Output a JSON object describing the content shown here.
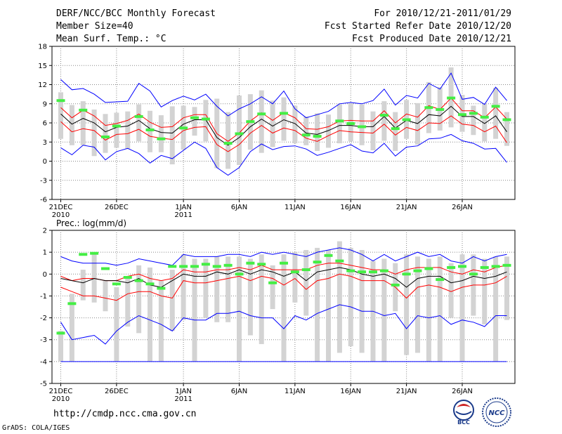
{
  "header": {
    "title": "DERF/NCC/BCC Monthly Forecast",
    "member_size": "Member Size=40",
    "variable": "Mean Surf. Temp.: °C",
    "period": "For 2010/12/21-2011/01/29",
    "started": "Fcst Started Refer Date 2010/12/20",
    "produced": "Fcst Produced Date 2010/12/21"
  },
  "footer": {
    "url": "http://cmdp.ncc.cma.gov.cn",
    "credit": "GrADS: COLA/IGES"
  },
  "logos": {
    "bcc": "BCC",
    "ncc": "NCC"
  },
  "colors": {
    "mean": "#000000",
    "spread": "#ff0000",
    "envelope": "#0000ff",
    "box": "#d3d3d3",
    "obs": "#44ee44"
  },
  "chart_data": [
    {
      "type": "box-line",
      "title": "",
      "ylabel": "Mean Surf. Temp.: °C",
      "ylim": [
        -6,
        18
      ],
      "yticks": [
        -6,
        -3,
        0,
        3,
        6,
        9,
        12,
        15,
        18
      ],
      "xticks": [
        {
          "day": 0,
          "label": "21DEC",
          "sub": "2010"
        },
        {
          "day": 5,
          "label": "26DEC",
          "sub": ""
        },
        {
          "day": 11,
          "label": "1JAN",
          "sub": "2011"
        },
        {
          "day": 16,
          "label": "6JAN",
          "sub": ""
        },
        {
          "day": 21,
          "label": "11JAN",
          "sub": ""
        },
        {
          "day": 26,
          "label": "16JAN",
          "sub": ""
        },
        {
          "day": 31,
          "label": "21JAN",
          "sub": ""
        },
        {
          "day": 36,
          "label": "26JAN",
          "sub": ""
        }
      ],
      "series": [
        {
          "name": "max",
          "values": [
            12.8,
            11.2,
            11.4,
            10.5,
            9.2,
            9.3,
            9.4,
            12.2,
            11.0,
            8.5,
            9.5,
            10.2,
            9.6,
            10.5,
            8.6,
            7.1,
            8.2,
            9.0,
            10.1,
            9.0,
            11.0,
            8.2,
            6.8,
            7.3,
            7.8,
            9.0,
            9.2,
            9.0,
            9.5,
            11.3,
            8.8,
            10.3,
            9.9,
            12.2,
            11.3,
            13.8,
            9.7,
            10.0,
            8.9,
            11.6,
            9.5
          ]
        },
        {
          "name": "upper",
          "values": [
            8.4,
            6.8,
            8.0,
            7.1,
            5.6,
            5.9,
            6.4,
            7.4,
            6.1,
            5.3,
            5.4,
            6.8,
            7.3,
            7.3,
            4.3,
            3.1,
            4.4,
            6.3,
            7.6,
            6.4,
            7.6,
            6.8,
            5.1,
            5.0,
            5.4,
            6.3,
            6.4,
            6.3,
            6.3,
            7.9,
            6.0,
            7.4,
            6.9,
            8.7,
            8.1,
            9.9,
            7.9,
            7.9,
            6.8,
            8.5,
            6.6
          ]
        },
        {
          "name": "mean",
          "values": [
            7.4,
            5.8,
            6.7,
            6.0,
            4.6,
            5.3,
            5.5,
            6.4,
            5.1,
            4.5,
            4.4,
            5.8,
            6.5,
            6.5,
            3.7,
            2.5,
            3.7,
            5.4,
            6.6,
            5.5,
            6.5,
            5.9,
            4.4,
            4.2,
            4.8,
            5.6,
            5.6,
            5.4,
            5.4,
            7.0,
            5.2,
            6.4,
            5.9,
            7.3,
            7.1,
            8.6,
            7.0,
            7.0,
            5.9,
            7.1,
            4.6
          ]
        },
        {
          "name": "lower",
          "values": [
            6.2,
            4.6,
            5.1,
            4.8,
            3.3,
            4.2,
            4.3,
            5.0,
            3.9,
            3.6,
            3.4,
            4.8,
            5.3,
            5.4,
            2.6,
            1.5,
            2.6,
            4.4,
            5.6,
            4.4,
            5.2,
            4.8,
            3.6,
            3.1,
            4.0,
            4.8,
            4.6,
            4.5,
            4.4,
            5.8,
            4.1,
            5.3,
            4.8,
            6.0,
            5.9,
            7.1,
            5.8,
            5.6,
            4.6,
            5.5,
            2.9
          ]
        },
        {
          "name": "min",
          "values": [
            2.1,
            1.0,
            2.5,
            2.2,
            0.2,
            1.5,
            2.0,
            1.2,
            -0.3,
            0.9,
            0.4,
            1.7,
            3.0,
            2.0,
            -1.0,
            -2.2,
            -1.0,
            1.5,
            2.7,
            1.8,
            2.3,
            2.4,
            1.9,
            0.9,
            1.4,
            2.0,
            2.6,
            1.6,
            1.3,
            2.8,
            0.8,
            2.2,
            2.4,
            3.5,
            3.6,
            4.2,
            3.2,
            2.8,
            1.9,
            2.0,
            -0.2
          ]
        },
        {
          "name": "observed",
          "values": [
            9.5,
            null,
            8.0,
            null,
            3.8,
            5.5,
            null,
            7.0,
            4.9,
            3.5,
            null,
            5.2,
            6.8,
            6.6,
            null,
            2.8,
            4.3,
            6.2,
            7.4,
            null,
            7.5,
            null,
            4.1,
            3.9,
            null,
            6.3,
            5.9,
            5.4,
            null,
            7.2,
            5.1,
            6.5,
            null,
            8.4,
            8.1,
            9.9,
            7.3,
            7.5,
            6.9,
            8.6,
            6.5
          ]
        },
        {
          "name": "box_top",
          "values": [
            10.8,
            8.8,
            9.4,
            8.1,
            7.4,
            7.6,
            7.8,
            8.9,
            7.9,
            7.2,
            8.6,
            8.7,
            8.5,
            9.6,
            9.8,
            7.7,
            10.3,
            10.5,
            11.1,
            9.5,
            10.0,
            8.7,
            7.0,
            7.5,
            7.3,
            8.9,
            9.1,
            8.9,
            7.8,
            9.4,
            7.7,
            9.6,
            9.1,
            12.4,
            11.6,
            14.7,
            10.4,
            8.7,
            9.0,
            11.5,
            7.7
          ]
        },
        {
          "name": "box_bottom",
          "values": [
            3.5,
            2.5,
            2.5,
            0.8,
            1.3,
            2.1,
            1.9,
            3.1,
            1.4,
            1.4,
            -0.5,
            1.8,
            4.0,
            3.1,
            -1.1,
            -1.2,
            -0.6,
            1.8,
            1.3,
            2.2,
            3.2,
            2.8,
            2.5,
            1.6,
            2.1,
            2.8,
            3.1,
            2.5,
            1.7,
            3.2,
            1.6,
            3.5,
            2.6,
            4.4,
            4.8,
            5.3,
            4.6,
            4.1,
            3.1,
            3.5,
            2.4
          ]
        }
      ]
    },
    {
      "type": "box-line",
      "title": "Prec.: log(mm/d)",
      "ylabel": "Prec.: log(mm/d)",
      "ylim": [
        -5,
        2
      ],
      "yticks": [
        -5,
        -4,
        -3,
        -2,
        -1,
        0,
        1,
        2
      ],
      "xticks": [
        {
          "day": 0,
          "label": "21DEC",
          "sub": "2010"
        },
        {
          "day": 5,
          "label": "26DEC",
          "sub": ""
        },
        {
          "day": 11,
          "label": "1JAN",
          "sub": "2011"
        },
        {
          "day": 16,
          "label": "6JAN",
          "sub": ""
        },
        {
          "day": 21,
          "label": "11JAN",
          "sub": ""
        },
        {
          "day": 26,
          "label": "16JAN",
          "sub": ""
        },
        {
          "day": 31,
          "label": "21JAN",
          "sub": ""
        },
        {
          "day": 36,
          "label": "26JAN",
          "sub": ""
        }
      ],
      "baseline": -4,
      "series": [
        {
          "name": "max",
          "values": [
            0.8,
            0.6,
            0.5,
            0.5,
            0.5,
            0.4,
            0.5,
            0.7,
            0.6,
            0.5,
            0.4,
            0.9,
            0.8,
            0.8,
            0.8,
            0.9,
            0.9,
            0.8,
            1.0,
            0.9,
            1.0,
            0.9,
            0.8,
            1.0,
            1.1,
            1.2,
            1.1,
            0.9,
            0.6,
            0.9,
            0.6,
            0.8,
            1.0,
            0.8,
            0.9,
            0.6,
            0.5,
            0.8,
            0.6,
            0.8,
            0.9
          ]
        },
        {
          "name": "upper",
          "values": [
            -0.1,
            -0.3,
            -0.2,
            -0.2,
            -0.3,
            -0.3,
            -0.1,
            0.0,
            -0.2,
            -0.3,
            -0.2,
            0.2,
            0.1,
            0.1,
            0.2,
            0.2,
            0.3,
            0.2,
            0.4,
            0.2,
            0.2,
            0.2,
            0.2,
            0.4,
            0.5,
            0.5,
            0.4,
            0.3,
            0.2,
            0.2,
            0.0,
            0.2,
            0.3,
            0.3,
            0.3,
            0.1,
            0.0,
            0.2,
            0.1,
            0.3,
            0.4
          ]
        },
        {
          "name": "mean",
          "values": [
            -0.2,
            -0.3,
            -0.4,
            -0.2,
            -0.3,
            -0.3,
            -0.4,
            -0.2,
            -0.5,
            -0.6,
            -0.3,
            0.0,
            -0.1,
            -0.1,
            0.1,
            0.0,
            0.2,
            0.0,
            0.2,
            0.1,
            -0.1,
            0.1,
            -0.3,
            0.1,
            0.2,
            0.3,
            0.2,
            0.0,
            -0.1,
            0.0,
            -0.2,
            -0.6,
            -0.2,
            -0.1,
            -0.1,
            -0.4,
            -0.3,
            -0.1,
            -0.2,
            -0.1,
            0.1
          ]
        },
        {
          "name": "lower",
          "values": [
            -0.6,
            -0.8,
            -1.0,
            -1.0,
            -1.1,
            -1.2,
            -0.9,
            -0.8,
            -0.8,
            -1.0,
            -1.1,
            -0.3,
            -0.4,
            -0.4,
            -0.3,
            -0.2,
            -0.1,
            -0.3,
            -0.1,
            -0.2,
            -0.5,
            -0.2,
            -0.7,
            -0.3,
            -0.2,
            0.0,
            -0.1,
            -0.3,
            -0.3,
            -0.3,
            -0.6,
            -1.1,
            -0.6,
            -0.5,
            -0.6,
            -0.8,
            -0.6,
            -0.5,
            -0.5,
            -0.4,
            -0.1
          ]
        },
        {
          "name": "min",
          "values": [
            -2.2,
            -3.0,
            -2.9,
            -2.8,
            -3.2,
            -2.6,
            -2.2,
            -1.9,
            -2.1,
            -2.3,
            -2.6,
            -2.0,
            -2.1,
            -2.1,
            -1.8,
            -1.8,
            -1.7,
            -1.9,
            -2.0,
            -2.0,
            -2.5,
            -1.9,
            -2.1,
            -1.8,
            -1.6,
            -1.4,
            -1.5,
            -1.7,
            -1.7,
            -1.9,
            -1.8,
            -2.5,
            -1.9,
            -2.0,
            -1.9,
            -2.3,
            -2.1,
            -2.2,
            -2.4,
            -1.9,
            -1.9
          ]
        },
        {
          "name": "observed",
          "values": [
            -2.7,
            -1.35,
            0.9,
            0.95,
            0.25,
            -0.45,
            -0.15,
            -0.3,
            -0.45,
            -0.65,
            0.35,
            0.35,
            0.35,
            0.45,
            0.35,
            0.4,
            0.0,
            0.5,
            0.45,
            -0.4,
            0.5,
            0.1,
            0.2,
            0.55,
            0.85,
            0.6,
            0.15,
            0.1,
            0.1,
            0.15,
            -0.5,
            0.0,
            0.15,
            0.25,
            -0.25,
            0.3,
            0.35,
            0.0,
            0.3,
            0.35,
            0.4
          ]
        },
        {
          "name": "box_top",
          "values": [
            -2.6,
            -0.9,
            0.2,
            1.0,
            -0.3,
            -0.6,
            -0.1,
            0.4,
            0.3,
            -0.3,
            0.2,
            0.9,
            0.7,
            0.7,
            0.8,
            0.8,
            0.8,
            0.7,
            0.9,
            0.4,
            0.9,
            1.0,
            1.1,
            1.2,
            1.1,
            1.5,
            1.2,
            1.1,
            0.6,
            0.7,
            0.5,
            0.9,
            0.8,
            0.7,
            0.8,
            0.5,
            0.9,
            0.9,
            0.7,
            0.8,
            0.8
          ]
        },
        {
          "name": "box_bottom",
          "values": [
            -4.0,
            -4.0,
            -1.2,
            -1.3,
            -1.7,
            -4.0,
            -2.4,
            -2.7,
            -4.0,
            -4.0,
            -2.6,
            -2.1,
            -4.0,
            -2.0,
            -2.2,
            -2.2,
            -4.0,
            -2.8,
            -3.2,
            -1.6,
            -4.0,
            -1.3,
            -1.9,
            -4.0,
            -4.0,
            -3.6,
            -3.3,
            -3.6,
            -4.0,
            -4.0,
            -1.7,
            -3.7,
            -3.6,
            -4.0,
            -4.0,
            -2.0,
            -4.0,
            -1.9,
            -2.3,
            -4.0,
            -2.1
          ]
        }
      ]
    }
  ]
}
